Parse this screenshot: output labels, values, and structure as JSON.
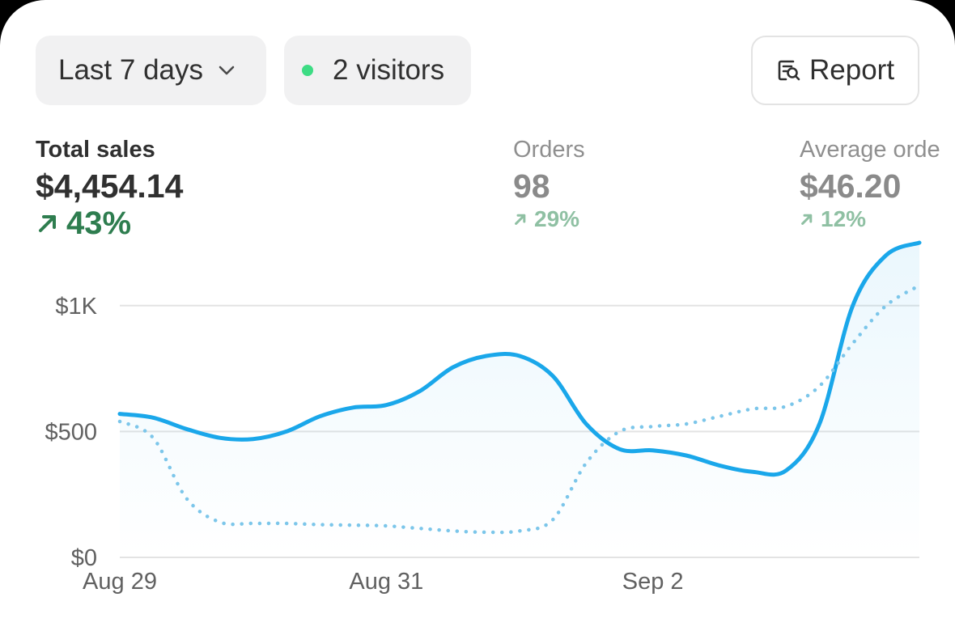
{
  "toolbar": {
    "date_range_label": "Last 7 days",
    "visitors_label": "2 visitors",
    "report_label": "Report"
  },
  "metrics": [
    {
      "label": "Total sales",
      "value": "$4,454.14",
      "change": "43%"
    },
    {
      "label": "Orders",
      "value": "98",
      "change": "29%"
    },
    {
      "label": "Average orde",
      "value": "$46.20",
      "change": "12%"
    }
  ],
  "colors": {
    "primary_line": "#1aa7ea",
    "comparison_line": "#7cc6ea",
    "positive": "#2e7d4f",
    "positive_muted": "#8fc0a3",
    "live_dot": "#3ddc84",
    "gridline": "#e3e3e3"
  },
  "icons": {
    "dropdown": "chevron-down-icon",
    "live": "status-dot-icon",
    "report": "report-search-icon",
    "trend": "arrow-up-right-icon"
  },
  "chart_data": {
    "type": "line",
    "x_tick_labels": [
      "Aug 29",
      "Aug 31",
      "Sep 2"
    ],
    "y_tick_labels": [
      "$0",
      "$500",
      "$1K"
    ],
    "y_ticks": [
      0,
      500,
      1000
    ],
    "ylim": [
      0,
      1250
    ],
    "xlim": [
      0,
      6
    ],
    "x_tick_positions": [
      0,
      2,
      4
    ],
    "grid": true,
    "series": [
      {
        "style": "solid",
        "x": [
          0,
          0.25,
          0.5,
          0.75,
          1,
          1.25,
          1.5,
          1.75,
          2,
          2.25,
          2.5,
          2.75,
          3,
          3.25,
          3.5,
          3.75,
          4,
          4.25,
          4.5,
          4.75,
          5,
          5.25,
          5.5,
          5.75,
          6
        ],
        "values": [
          570,
          555,
          510,
          475,
          470,
          500,
          560,
          595,
          605,
          660,
          755,
          800,
          800,
          720,
          530,
          430,
          425,
          405,
          365,
          340,
          345,
          530,
          1000,
          1200,
          1250
        ]
      },
      {
        "style": "dotted",
        "x": [
          0,
          0.25,
          0.5,
          0.75,
          1,
          1.25,
          1.5,
          1.75,
          2,
          2.25,
          2.5,
          2.75,
          3,
          3.25,
          3.5,
          3.75,
          4,
          4.25,
          4.5,
          4.75,
          5,
          5.25,
          5.5,
          5.75,
          6
        ],
        "values": [
          540,
          475,
          235,
          140,
          135,
          135,
          130,
          128,
          125,
          115,
          105,
          100,
          105,
          150,
          375,
          500,
          520,
          530,
          560,
          590,
          600,
          680,
          850,
          1000,
          1080
        ]
      }
    ]
  }
}
